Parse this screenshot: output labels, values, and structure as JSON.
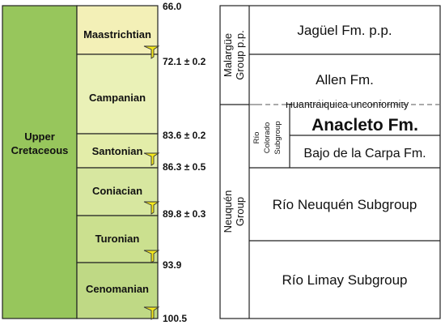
{
  "chronostratigraphy": {
    "series": "Upper Cretaceous",
    "series_lines": [
      "Upper",
      "Cretaceous"
    ],
    "stages": [
      {
        "name": "Maastrichtian",
        "color": "#f3f0b7",
        "top_ma": 66.0,
        "base_ma": 72.1
      },
      {
        "name": "Campanian",
        "color": "#eaf1b7",
        "top_ma": 72.1,
        "base_ma": 83.6
      },
      {
        "name": "Santonian",
        "color": "#e3eda9",
        "top_ma": 83.6,
        "base_ma": 86.3
      },
      {
        "name": "Coniacian",
        "color": "#d7e7a0",
        "top_ma": 86.3,
        "base_ma": 89.8
      },
      {
        "name": "Turonian",
        "color": "#cbe08f",
        "top_ma": 89.8,
        "base_ma": 93.9
      },
      {
        "name": "Cenomanian",
        "color": "#bfd985",
        "top_ma": 93.9,
        "base_ma": 100.5
      }
    ],
    "series_color": "#97c65c",
    "gssp_marker_color": "#f4e81c",
    "boundary_ages": [
      "66.0",
      "72.1 ± 0.2",
      "83.6 ± 0.2",
      "86.3 ± 0.5",
      "89.8 ± 0.3",
      "93.9",
      "100.5"
    ]
  },
  "lithostratigraphy": {
    "groups": [
      {
        "name": "Malargüe Group p.p.",
        "lines": [
          "Malargüe",
          "Group p.p."
        ]
      },
      {
        "name": "Neuquén Group",
        "lines": [
          "Neuquén",
          "Group"
        ]
      }
    ],
    "subgroup_rio_colorado": {
      "name": "Río Colorado Subgroup",
      "lines": [
        "Río",
        "Colorado",
        "Subgroup"
      ]
    },
    "units": {
      "jaguel": "Jagüel Fm. p.p.",
      "allen": "Allen Fm.",
      "unconformity": "Huantráiquica unconformity",
      "anacleto": "Anacleto Fm.",
      "bajo_carpa": "Bajo de la Carpa Fm.",
      "rio_neuquen": "Río Neuquén Subgroup",
      "rio_limay": "Río Limay Subgroup"
    }
  }
}
